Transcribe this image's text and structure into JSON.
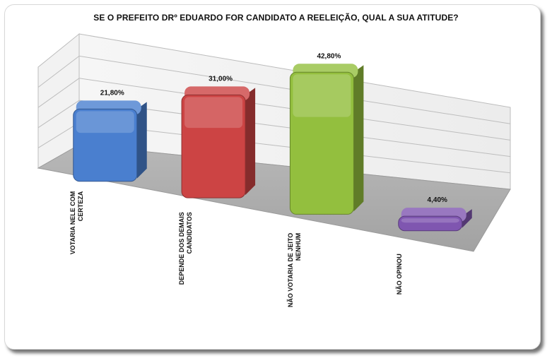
{
  "chart_data": {
    "type": "bar",
    "title": "SE O PREFEITO DRº EDUARDO FOR CANDIDATO A REELEIÇÃO, QUAL A SUA ATITUDE?",
    "categories": [
      [
        "VOTARIA NELE COM",
        "CERTEZA"
      ],
      [
        "DEPENDE DOS DEMAIS",
        "CANDIDATOS"
      ],
      [
        "NÃO VOTARIA DE JEITO",
        "NENHUM"
      ],
      [
        "NÃO OPINOU"
      ]
    ],
    "values": [
      21.8,
      31.0,
      42.8,
      4.4
    ],
    "data_labels": [
      "21,80%",
      "31,00%",
      "42,80%",
      "4,40%"
    ],
    "colors": [
      "#4a7fcf",
      "#cc4444",
      "#93bf3e",
      "#7f56b0"
    ],
    "ylim": [
      0,
      50
    ],
    "grid": true,
    "style": "3d"
  }
}
